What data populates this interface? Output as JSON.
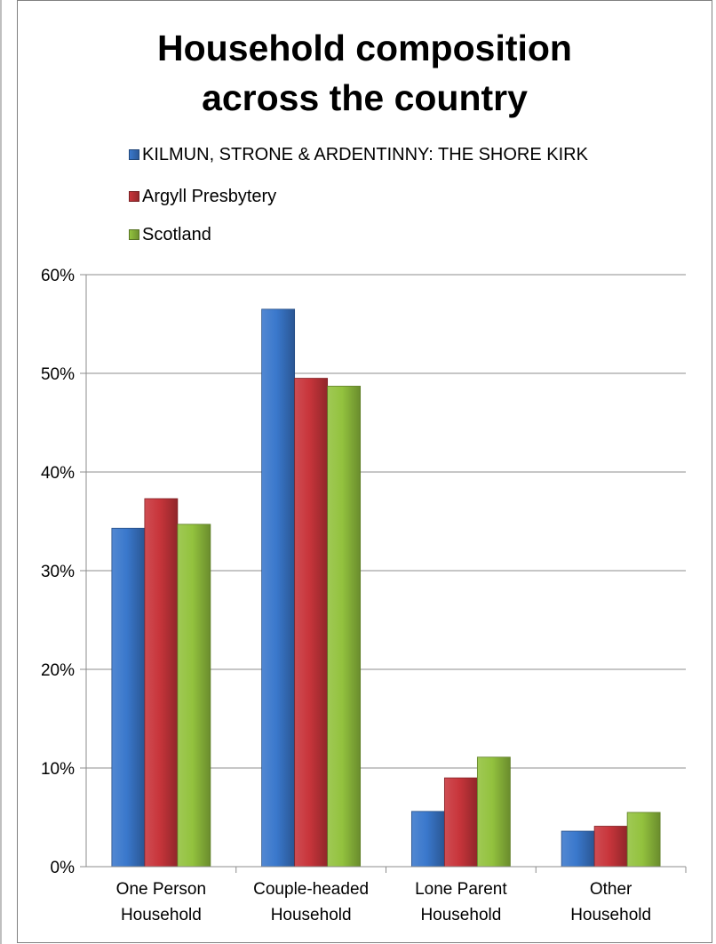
{
  "chart_data": {
    "type": "bar",
    "title": "Household composition across the country",
    "categories": [
      [
        "One Person",
        "Household"
      ],
      [
        "Couple-headed",
        "Household"
      ],
      [
        "Lone Parent",
        "Household"
      ],
      [
        "Other",
        "Household"
      ]
    ],
    "series": [
      {
        "name": "KILMUN, STRONE & ARDENTINNY: THE SHORE KIRK",
        "color": "#3a78cc",
        "values": [
          34.3,
          56.5,
          5.6,
          3.6
        ]
      },
      {
        "name": "Argyll Presbytery",
        "color": "#c8353b",
        "values": [
          37.3,
          49.5,
          9.0,
          4.1
        ]
      },
      {
        "name": "Scotland",
        "color": "#93c23e",
        "values": [
          34.7,
          48.7,
          11.1,
          5.5
        ]
      }
    ],
    "ylim": [
      0,
      60
    ],
    "yticks": [
      "0%",
      "10%",
      "20%",
      "30%",
      "40%",
      "50%",
      "60%"
    ],
    "grid": true,
    "legend_position": "top"
  }
}
